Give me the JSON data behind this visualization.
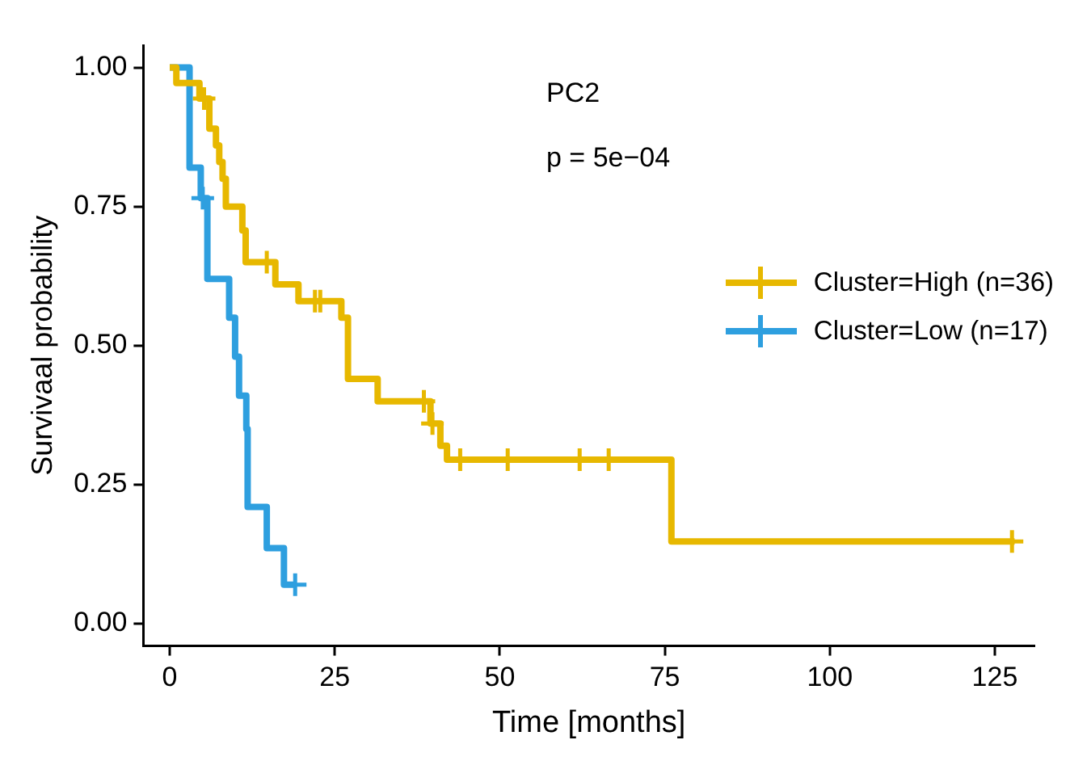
{
  "chart_data": {
    "type": "step",
    "xlabel": "Time [months]",
    "ylabel": "Survivaal probability",
    "annotations": [
      "PC2",
      "p = 5e−04"
    ],
    "xlim": [
      -4,
      131
    ],
    "xticks": [
      0,
      25,
      50,
      75,
      100,
      125
    ],
    "ylim": [
      -0.04,
      1.04
    ],
    "yticks": [
      {
        "value": 0,
        "label": "0.00"
      },
      {
        "value": 0.25,
        "label": "0.25"
      },
      {
        "value": 0.5,
        "label": "0.50"
      },
      {
        "value": 0.75,
        "label": "0.75"
      },
      {
        "value": 1,
        "label": "1.00"
      }
    ],
    "grid": false,
    "legend": "top right",
    "series": [
      {
        "name": "Cluster=High (n=36)",
        "color": "#e7b800",
        "x": [
          0,
          1,
          4.5,
          6,
          7,
          7.5,
          8,
          8.5,
          11,
          11.5,
          16,
          19.5,
          26,
          27,
          31.5,
          39.5,
          41,
          42,
          76,
          128
        ],
        "values": [
          1,
          0.972,
          0.944,
          0.89,
          0.86,
          0.83,
          0.8,
          0.75,
          0.707,
          0.65,
          0.61,
          0.58,
          0.55,
          0.44,
          0.4,
          0.36,
          0.32,
          0.295,
          0.148,
          0.148
        ]
      },
      {
        "name": "Cluster=Low (n=17)",
        "color": "#2e9fdf",
        "x": [
          0,
          3,
          4.7,
          5.7,
          9,
          9.9,
          10.5,
          11.6,
          11.8,
          14.7,
          17.3,
          19
        ],
        "values": [
          1,
          0.82,
          0.765,
          0.62,
          0.55,
          0.48,
          0.41,
          0.35,
          0.21,
          0.136,
          0.07,
          0.07
        ]
      },
      {
        "type": "scatter",
        "marker": "cross",
        "color": "#e7b800",
        "x": [
          5.2,
          14.7,
          22,
          22.8,
          38.5,
          39.8,
          44,
          51.2,
          62.1,
          66.5,
          127.6
        ],
        "values": [
          0.944,
          0.65,
          0.58,
          0.58,
          0.4,
          0.36,
          0.295,
          0.295,
          0.295,
          0.295,
          0.148
        ]
      },
      {
        "type": "scatter",
        "marker": "cross",
        "color": "#2e9fdf",
        "x": [
          5,
          19
        ],
        "values": [
          0.765,
          0.07
        ]
      }
    ]
  }
}
